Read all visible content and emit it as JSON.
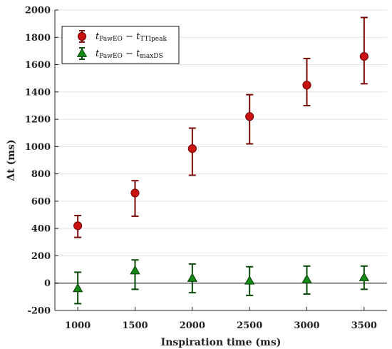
{
  "chart_data": {
    "type": "scatter",
    "xlabel": "Inspiration time (ms)",
    "ylabel": "Δt (ms)",
    "xlim": [
      800,
      3700
    ],
    "ylim": [
      -200,
      2000
    ],
    "x_ticks": [
      1000,
      1500,
      2000,
      2500,
      3000,
      3500
    ],
    "y_ticks": [
      -200,
      0,
      200,
      400,
      600,
      800,
      1000,
      1200,
      1400,
      1600,
      1800,
      2000
    ],
    "x_tick_labels": [
      "1000",
      "1500",
      "2000",
      "2500",
      "3000",
      "3500"
    ],
    "y_tick_labels": [
      "-200",
      "0",
      "200",
      "400",
      "600",
      "800",
      "1000",
      "1200",
      "1400",
      "1600",
      "1800",
      "2000"
    ],
    "grid": "horizontal",
    "zero_line": true,
    "legend_position": "top-left",
    "series": [
      {
        "name": "tPawEO − tTTIpeak",
        "name_main": "t",
        "name_sub1": "PawEO",
        "name_mid": " − t",
        "name_sub2": "TTIpeak",
        "marker": "circle",
        "color": "#cc1111",
        "edge_color": "#7a0a0a",
        "x": [
          1000,
          1500,
          2000,
          2500,
          3000,
          3500
        ],
        "y": [
          420,
          660,
          985,
          1220,
          1450,
          1660
        ],
        "err_low": [
          335,
          490,
          790,
          1020,
          1300,
          1460
        ],
        "err_high": [
          495,
          750,
          1135,
          1380,
          1645,
          1945
        ]
      },
      {
        "name": "tPawEO − tmaxDS",
        "name_main": "t",
        "name_sub1": "PawEO",
        "name_mid": " − t",
        "name_sub2": "maxDS",
        "marker": "triangle",
        "color": "#138a13",
        "edge_color": "#0a4a0a",
        "x": [
          1000,
          1500,
          2000,
          2500,
          3000,
          3500
        ],
        "y": [
          -40,
          90,
          35,
          15,
          25,
          40
        ],
        "err_low": [
          -150,
          -45,
          -70,
          -90,
          -80,
          -45
        ],
        "err_high": [
          80,
          170,
          140,
          120,
          125,
          125
        ]
      }
    ]
  }
}
